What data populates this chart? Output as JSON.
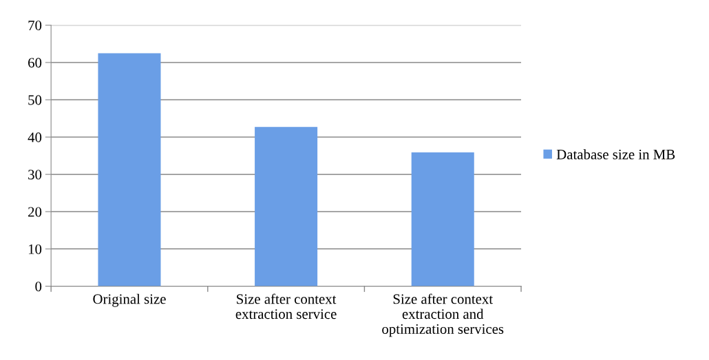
{
  "chart_data": {
    "type": "bar",
    "categories": [
      "Original size",
      "Size after context\nextraction service",
      "Size after context\nextraction and\noptimization services"
    ],
    "series": [
      {
        "name": "Database size in MB",
        "color": "#6a9ee6",
        "values": [
          62.5,
          42.7,
          35.9
        ]
      }
    ],
    "ylim": [
      0,
      70
    ],
    "yticks": [
      0,
      10,
      20,
      30,
      40,
      50,
      60,
      70
    ],
    "grid": "y",
    "legend": "right"
  }
}
